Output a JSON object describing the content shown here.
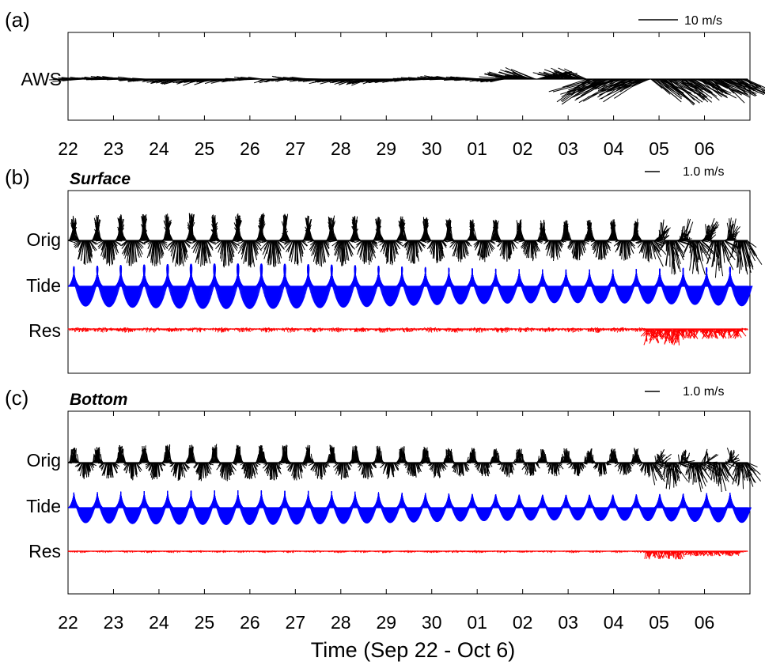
{
  "chart_data": {
    "type": "quiver-timeseries",
    "xlabel": "Time (Sep 22  - Oct 6)",
    "x_ticks": [
      "22",
      "23",
      "24",
      "25",
      "26",
      "27",
      "28",
      "29",
      "30",
      "01",
      "02",
      "03",
      "04",
      "05",
      "06"
    ],
    "xlim_days": [
      0,
      15
    ],
    "colors": {
      "orig": "#000000",
      "tide": "#0000ff",
      "res": "#ff0000",
      "wind": "#000000"
    },
    "panels": [
      {
        "id": "a",
        "label": "(a)",
        "title": "",
        "scale_label": "10 m/s",
        "scale_value": 10,
        "rows": [
          {
            "name": "AWS",
            "kind": "wind"
          }
        ]
      },
      {
        "id": "b",
        "label": "(b)",
        "title": "Surface",
        "scale_label": "1.0 m/s",
        "scale_value": 1.0,
        "rows": [
          {
            "name": "Orig",
            "kind": "orig"
          },
          {
            "name": "Tide",
            "kind": "tide"
          },
          {
            "name": "Res",
            "kind": "res"
          }
        ]
      },
      {
        "id": "c",
        "label": "(c)",
        "title": "Bottom",
        "scale_label": "1.0 m/s",
        "scale_value": 1.0,
        "rows": [
          {
            "name": "Orig",
            "kind": "orig"
          },
          {
            "name": "Tide",
            "kind": "tide"
          },
          {
            "name": "Res",
            "kind": "res"
          }
        ]
      }
    ]
  }
}
